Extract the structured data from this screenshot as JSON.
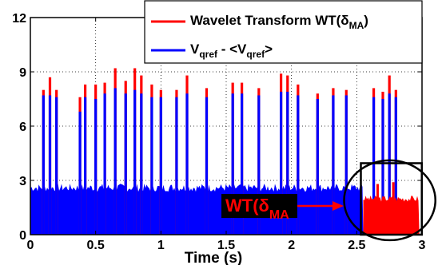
{
  "chart_data": {
    "type": "bar",
    "title": "",
    "xlabel": "Time (s)",
    "ylabel": "",
    "xlim": [
      0,
      3
    ],
    "ylim": [
      0,
      12
    ],
    "grid": true,
    "legend_position": "top-right",
    "x_ticks": [
      0,
      0.5,
      1,
      1.5,
      2,
      2.5,
      3
    ],
    "x_tick_labels": [
      "0",
      "0.5",
      "1",
      "1.5",
      "2",
      "2.5",
      "3"
    ],
    "y_ticks": [
      0,
      3,
      6,
      9,
      12
    ],
    "y_tick_labels": [
      "0",
      "3",
      "6",
      "9",
      "12"
    ],
    "baseline_level": 2.6,
    "series": [
      {
        "name_main": "Wavelet Transform WT(δ",
        "name_sub": "MA",
        "name_tail": ")",
        "color": "#ff0000",
        "x": [
          0.1,
          0.15,
          0.2,
          0.38,
          0.42,
          0.5,
          0.57,
          0.65,
          0.73,
          0.8,
          0.85,
          0.93,
          1.0,
          1.12,
          1.2,
          1.35,
          1.55,
          1.62,
          1.75,
          1.92,
          1.97,
          2.05,
          2.2,
          2.32,
          2.42,
          2.63,
          2.7,
          2.75,
          2.8
        ],
        "values": [
          8.0,
          8.7,
          8.0,
          7.6,
          8.3,
          8.3,
          8.4,
          9.2,
          8.5,
          9.2,
          8.8,
          8.3,
          8.0,
          8.0,
          8.8,
          8.1,
          8.4,
          8.4,
          8.1,
          8.9,
          8.8,
          8.3,
          7.8,
          8.1,
          8.0,
          8.1,
          7.9,
          8.8,
          8.0
        ]
      },
      {
        "name_main": "V",
        "name_sub": "qref",
        "name_mid": " - <V",
        "name_sub2": "qref",
        "name_tail": ">",
        "color": "#0000ff",
        "x": [
          0.1,
          0.15,
          0.2,
          0.38,
          0.42,
          0.5,
          0.57,
          0.65,
          0.73,
          0.8,
          0.85,
          0.93,
          1.0,
          1.12,
          1.2,
          1.35,
          1.55,
          1.62,
          1.75,
          1.92,
          1.97,
          2.05,
          2.2,
          2.32,
          2.42,
          2.63,
          2.7,
          2.75,
          2.8
        ],
        "values": [
          7.7,
          7.7,
          7.6,
          6.8,
          7.6,
          7.5,
          7.8,
          8.1,
          7.8,
          8.0,
          7.8,
          7.6,
          7.6,
          7.6,
          7.8,
          7.6,
          7.8,
          7.8,
          7.7,
          7.9,
          7.9,
          7.7,
          7.5,
          7.7,
          7.7,
          7.6,
          7.5,
          7.8,
          7.6
        ]
      }
    ],
    "inset": {
      "x_range": [
        2.55,
        2.98
      ],
      "level": 2.0,
      "peaks_x": [
        2.66,
        2.78
      ],
      "peaks_values": [
        2.8,
        2.9
      ],
      "color": "#ff0000"
    },
    "annotation": {
      "text_main": "WT(δ",
      "text_sub": "MA",
      "text_color": "#ff0000",
      "box_color": "#000000"
    },
    "colors": {
      "background": "#ffffff",
      "axis": "#000000",
      "grid": "#000000"
    }
  }
}
